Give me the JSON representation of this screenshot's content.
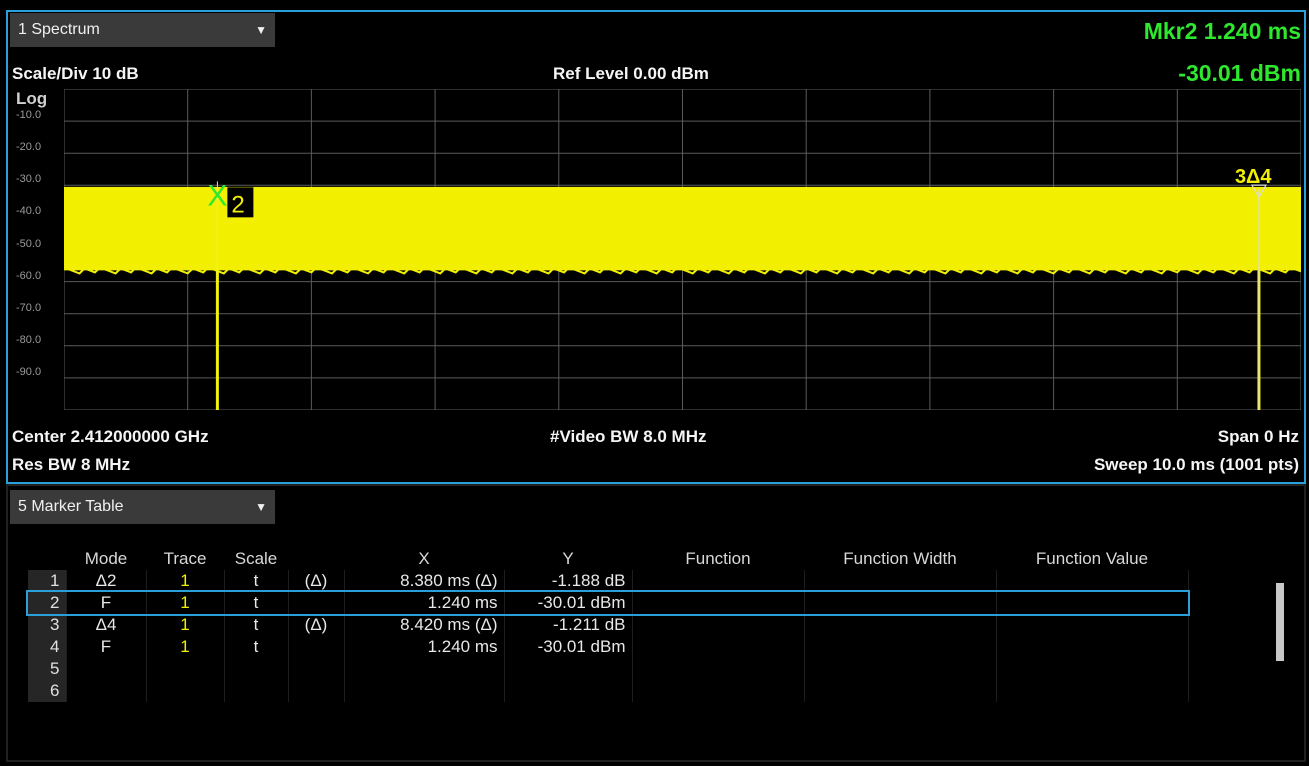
{
  "spectrum": {
    "view_menu_label": "1 Spectrum",
    "scale_div": "Scale/Div 10 dB",
    "ref_level": "Ref Level 0.00 dBm",
    "log_label": "Log",
    "marker_readout": {
      "line1": "Mkr2  1.240 ms",
      "line2": "-30.01 dBm"
    },
    "y_ticks": [
      "-10.0",
      "-20.0",
      "-30.0",
      "-40.0",
      "-50.0",
      "-60.0",
      "-70.0",
      "-80.0",
      "-90.0"
    ],
    "center": "Center 2.412000000 GHz",
    "res_bw": "Res BW 8 MHz",
    "video_bw": "#Video BW 8.0 MHz",
    "span": "Span 0 Hz",
    "sweep": "Sweep 10.0 ms (1001 pts)",
    "marker2_label": "2",
    "marker34_label": "3Δ4"
  },
  "chart_data": {
    "type": "line",
    "xlabel": "",
    "ylabel": "",
    "ylim": [
      -100,
      0
    ],
    "xlim": [
      0,
      10
    ],
    "x_unit": "ms",
    "y_unit": "dBm",
    "grid": true,
    "trace_color": "#f2f000",
    "series": [
      {
        "band_top": -30.5,
        "band_bottom": -56.5,
        "x": [
          0,
          1.24,
          1.24,
          1.24,
          9.66,
          9.66,
          9.66,
          10
        ],
        "y": [
          -43,
          -43,
          -100,
          -43,
          -43,
          -100,
          -43,
          -43
        ]
      }
    ],
    "markers": [
      {
        "label": "2",
        "x": 1.24,
        "y": -30.01
      },
      {
        "label": "3Δ4",
        "x": 9.66,
        "y": -31.2
      }
    ]
  },
  "marker_table": {
    "menu_label": "5 Marker Table",
    "headers": [
      "Mode",
      "Trace",
      "Scale",
      "",
      "X",
      "Y",
      "Function",
      "Function Width",
      "Function Value"
    ],
    "rows": [
      {
        "n": "1",
        "mode": "Δ2",
        "trace": "1",
        "scale": "t",
        "delta": "(Δ)",
        "x": "8.380 ms (Δ)",
        "y": "-1.188 dB"
      },
      {
        "n": "2",
        "mode": "F",
        "trace": "1",
        "scale": "t",
        "delta": "",
        "x": "1.240 ms",
        "y": "-30.01 dBm"
      },
      {
        "n": "3",
        "mode": "Δ4",
        "trace": "1",
        "scale": "t",
        "delta": "(Δ)",
        "x": "8.420 ms (Δ)",
        "y": "-1.211 dB"
      },
      {
        "n": "4",
        "mode": "F",
        "trace": "1",
        "scale": "t",
        "delta": "",
        "x": "1.240 ms",
        "y": "-30.01 dBm"
      },
      {
        "n": "5",
        "mode": "",
        "trace": "",
        "scale": "",
        "delta": "",
        "x": "",
        "y": ""
      },
      {
        "n": "6",
        "mode": "",
        "trace": "",
        "scale": "",
        "delta": "",
        "x": "",
        "y": ""
      }
    ],
    "selected_row": 2
  },
  "colors": {
    "accent": "#2a9fd8",
    "trace": "#f2f000",
    "marker_readout": "#2ee82e"
  }
}
